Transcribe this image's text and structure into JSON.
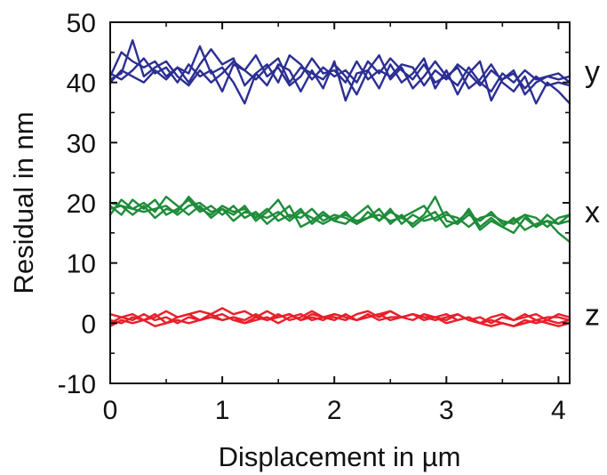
{
  "chart_data": {
    "type": "line",
    "xlabel": "Displacement in µm",
    "ylabel": "Residual in nm",
    "xlim": [
      0,
      4.1
    ],
    "ylim": [
      -10,
      50
    ],
    "xticks": [
      0,
      1,
      2,
      3,
      4
    ],
    "yticks": [
      -10,
      0,
      10,
      20,
      30,
      40,
      50
    ],
    "grid": false,
    "series_labels": [
      "y",
      "x",
      "z"
    ],
    "groups": [
      {
        "label": "y",
        "color": "#2b2f93",
        "x": [
          0,
          0.1,
          0.2,
          0.3,
          0.4,
          0.5,
          0.6,
          0.7,
          0.8,
          0.9,
          1.0,
          1.1,
          1.2,
          1.3,
          1.4,
          1.5,
          1.6,
          1.7,
          1.8,
          1.9,
          2.0,
          2.1,
          2.2,
          2.3,
          2.4,
          2.5,
          2.6,
          2.7,
          2.8,
          2.9,
          3.0,
          3.1,
          3.2,
          3.3,
          3.4,
          3.5,
          3.6,
          3.7,
          3.8,
          3.9,
          4.0,
          4.1
        ],
        "traces": [
          [
            41.0,
            45.0,
            43.5,
            42.5,
            43.5,
            41.0,
            42.5,
            40.0,
            43.0,
            45.5,
            43.0,
            44.0,
            39.5,
            41.5,
            43.0,
            40.0,
            44.5,
            43.0,
            40.5,
            42.5,
            41.0,
            42.0,
            40.0,
            43.5,
            41.5,
            44.0,
            42.0,
            40.5,
            43.0,
            40.0,
            41.0,
            42.5,
            39.0,
            40.5,
            43.0,
            40.0,
            38.5,
            41.0,
            36.5,
            40.0,
            38.5,
            36.5
          ],
          [
            40.5,
            41.5,
            47.0,
            41.0,
            42.5,
            43.5,
            41.0,
            39.5,
            42.0,
            40.0,
            41.5,
            43.5,
            42.0,
            40.5,
            42.5,
            44.0,
            40.0,
            42.5,
            41.5,
            40.5,
            43.0,
            41.0,
            38.0,
            42.0,
            44.5,
            40.5,
            42.5,
            39.0,
            41.0,
            43.5,
            41.0,
            39.5,
            42.5,
            40.0,
            38.5,
            41.5,
            40.0,
            42.0,
            40.5,
            41.0,
            41.5,
            40.0
          ],
          [
            41.5,
            40.5,
            42.0,
            44.0,
            41.5,
            42.5,
            40.0,
            43.0,
            41.0,
            42.0,
            38.5,
            43.0,
            42.0,
            44.5,
            41.0,
            42.5,
            39.5,
            41.0,
            44.0,
            41.5,
            42.0,
            40.0,
            43.5,
            40.5,
            42.0,
            41.0,
            43.0,
            42.5,
            39.5,
            42.0,
            40.5,
            43.0,
            41.5,
            39.5,
            42.0,
            40.5,
            41.5,
            39.0,
            41.0,
            39.5,
            40.0,
            39.5
          ],
          [
            40.0,
            42.0,
            41.0,
            40.0,
            42.0,
            40.5,
            42.5,
            41.5,
            46.0,
            41.5,
            42.5,
            40.0,
            36.5,
            41.5,
            39.5,
            43.0,
            42.0,
            38.5,
            42.0,
            39.0,
            43.5,
            37.0,
            41.5,
            42.0,
            39.0,
            43.0,
            40.0,
            41.5,
            44.0,
            39.0,
            42.0,
            38.0,
            41.5,
            43.5,
            37.0,
            40.5,
            42.0,
            38.0,
            40.0,
            41.0,
            40.5,
            41.0
          ]
        ]
      },
      {
        "label": "x",
        "color": "#1e8c3a",
        "x": [
          0,
          0.1,
          0.2,
          0.3,
          0.4,
          0.5,
          0.6,
          0.7,
          0.8,
          0.9,
          1.0,
          1.1,
          1.2,
          1.3,
          1.4,
          1.5,
          1.6,
          1.7,
          1.8,
          1.9,
          2.0,
          2.1,
          2.2,
          2.3,
          2.4,
          2.5,
          2.6,
          2.7,
          2.8,
          2.9,
          3.0,
          3.1,
          3.2,
          3.3,
          3.4,
          3.5,
          3.6,
          3.7,
          3.8,
          3.9,
          4.0,
          4.1
        ],
        "traces": [
          [
            18.0,
            20.5,
            19.0,
            20.0,
            18.5,
            21.0,
            19.5,
            18.0,
            19.5,
            17.5,
            19.0,
            18.0,
            19.5,
            17.0,
            18.5,
            20.5,
            17.5,
            19.0,
            16.5,
            18.0,
            17.0,
            18.5,
            16.5,
            17.5,
            19.0,
            16.5,
            18.0,
            16.0,
            17.5,
            18.5,
            16.0,
            17.0,
            18.5,
            15.5,
            17.0,
            16.0,
            17.5,
            15.5,
            16.5,
            17.0,
            15.0,
            13.5
          ],
          [
            19.5,
            18.0,
            20.5,
            19.0,
            20.5,
            18.0,
            19.0,
            20.5,
            18.5,
            19.5,
            18.0,
            19.5,
            17.5,
            18.5,
            16.5,
            18.0,
            19.5,
            16.0,
            17.0,
            18.5,
            17.0,
            16.5,
            18.0,
            19.5,
            17.0,
            18.5,
            17.5,
            16.5,
            18.0,
            21.0,
            17.0,
            16.5,
            18.0,
            17.0,
            18.5,
            16.5,
            17.0,
            18.0,
            16.0,
            17.0,
            16.5,
            18.0
          ],
          [
            20.0,
            19.5,
            18.0,
            19.5,
            17.5,
            19.0,
            18.5,
            21.0,
            19.0,
            18.0,
            19.5,
            18.5,
            19.0,
            17.5,
            19.0,
            17.0,
            18.0,
            17.5,
            19.0,
            17.0,
            18.0,
            17.5,
            16.5,
            18.5,
            17.0,
            19.0,
            16.5,
            18.0,
            17.0,
            17.5,
            18.5,
            16.5,
            19.0,
            16.0,
            17.5,
            16.0,
            15.0,
            17.5,
            16.0,
            18.0,
            16.5,
            17.0
          ],
          [
            19.0,
            19.5,
            19.0,
            18.5,
            19.0,
            19.5,
            18.0,
            19.5,
            20.0,
            18.5,
            19.0,
            17.0,
            18.5,
            18.0,
            17.5,
            18.5,
            17.0,
            18.5,
            17.5,
            16.5,
            17.5,
            18.0,
            17.0,
            17.5,
            18.0,
            17.0,
            17.5,
            18.5,
            19.5,
            17.0,
            18.0,
            17.5,
            16.0,
            17.5,
            18.0,
            17.0,
            16.5,
            18.0,
            17.5,
            16.0,
            17.5,
            18.0
          ]
        ]
      },
      {
        "label": "z",
        "color": "#e8202a",
        "x": [
          0,
          0.1,
          0.2,
          0.3,
          0.4,
          0.5,
          0.6,
          0.7,
          0.8,
          0.9,
          1.0,
          1.1,
          1.2,
          1.3,
          1.4,
          1.5,
          1.6,
          1.7,
          1.8,
          1.9,
          2.0,
          2.1,
          2.2,
          2.3,
          2.4,
          2.5,
          2.6,
          2.7,
          2.8,
          2.9,
          3.0,
          3.1,
          3.2,
          3.3,
          3.4,
          3.5,
          3.6,
          3.7,
          3.8,
          3.9,
          4.0,
          4.1
        ],
        "traces": [
          [
            0.0,
            1.0,
            0.5,
            1.5,
            0.5,
            1.0,
            0.0,
            1.0,
            0.5,
            1.5,
            0.5,
            1.0,
            0.5,
            1.5,
            0.5,
            1.0,
            1.5,
            0.5,
            1.0,
            0.5,
            1.5,
            1.0,
            0.5,
            1.5,
            0.5,
            1.0,
            1.0,
            1.5,
            0.5,
            1.0,
            0.5,
            1.5,
            0.5,
            1.0,
            0.0,
            1.0,
            0.5,
            1.5,
            0.5,
            1.0,
            1.0,
            0.5
          ],
          [
            0.5,
            0.0,
            1.0,
            0.5,
            1.5,
            0.0,
            1.0,
            1.5,
            2.0,
            1.5,
            2.5,
            1.5,
            2.0,
            1.0,
            2.0,
            1.0,
            1.5,
            0.5,
            1.5,
            1.0,
            1.0,
            0.5,
            1.5,
            2.0,
            1.0,
            2.0,
            1.0,
            1.5,
            1.0,
            1.0,
            0.0,
            0.5,
            1.0,
            0.0,
            -0.5,
            0.0,
            -0.5,
            0.5,
            0.0,
            0.5,
            0.0,
            0.5
          ],
          [
            1.5,
            1.0,
            1.5,
            0.5,
            1.0,
            2.0,
            1.0,
            1.5,
            0.5,
            1.0,
            1.5,
            0.5,
            0.0,
            1.0,
            0.5,
            1.5,
            0.5,
            1.0,
            2.0,
            1.0,
            0.5,
            1.5,
            0.5,
            1.0,
            1.5,
            2.0,
            1.0,
            0.5,
            1.5,
            1.0,
            1.5,
            0.5,
            1.0,
            0.0,
            1.0,
            1.5,
            0.5,
            1.0,
            1.5,
            0.5,
            1.5,
            1.0
          ],
          [
            -0.5,
            0.5,
            0.0,
            0.5,
            -0.5,
            0.0,
            0.5,
            0.0,
            0.5,
            1.0,
            0.5,
            1.0,
            0.0,
            0.5,
            1.0,
            0.0,
            1.0,
            1.5,
            0.5,
            1.0,
            1.5,
            1.0,
            0.5,
            1.0,
            1.5,
            0.5,
            1.0,
            1.5,
            1.0,
            0.5,
            1.0,
            1.5,
            0.5,
            0.0,
            0.5,
            0.0,
            -0.5,
            0.0,
            0.5,
            0.0,
            -0.5,
            0.0
          ]
        ]
      }
    ]
  }
}
